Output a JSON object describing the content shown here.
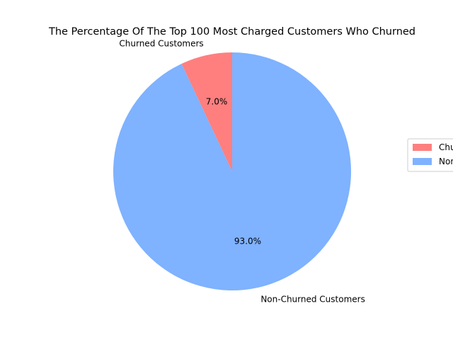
{
  "chart_data": {
    "type": "pie",
    "title": "The Percentage Of The Top 100 Most Charged Customers Who Churned",
    "slices": [
      {
        "label": "Churned Customers",
        "value": 7.0,
        "pct_label": "7.0%",
        "color": "#ff7f7f"
      },
      {
        "label": "Non-Churned Customers",
        "value": 93.0,
        "pct_label": "93.0%",
        "color": "#7fb2ff"
      }
    ],
    "start_angle_deg": 90,
    "direction": "counterclockwise",
    "legend": {
      "placement": "center-right",
      "entries": [
        "Churned Customers",
        "Non-Churned Customers"
      ]
    }
  }
}
